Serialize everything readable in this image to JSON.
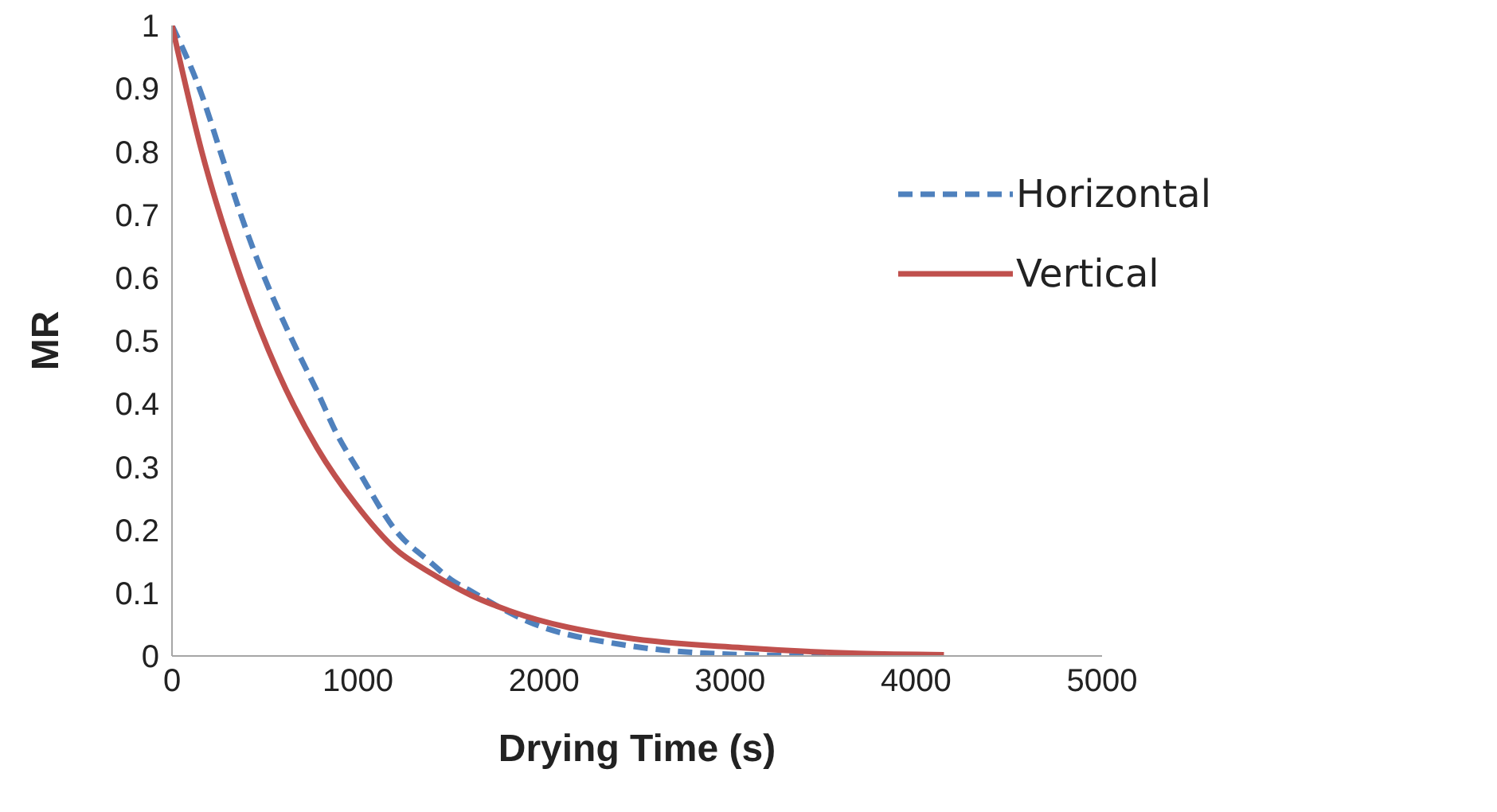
{
  "chart_data": {
    "type": "line",
    "xlabel": "Drying Time (s)",
    "ylabel": "MR",
    "xlim": [
      0,
      5000
    ],
    "xticks": [
      0,
      1000,
      2000,
      3000,
      4000,
      5000
    ],
    "ylim": [
      0,
      1
    ],
    "yticks": [
      0,
      0.1,
      0.2,
      0.3,
      0.4,
      0.5,
      0.6,
      0.7,
      0.8,
      0.9,
      1
    ],
    "grid": false,
    "legend": "top right",
    "marker": "none",
    "series": [
      {
        "name": "Horizontal",
        "color": "#4f81bd",
        "line_style": "dashed",
        "x": [
          0,
          160,
          260,
          370,
          470,
          570,
          680,
          780,
          890,
          990,
          1200,
          1400,
          1500,
          1600,
          1920,
          2440,
          3070,
          3500,
          4150
        ],
        "values": [
          1,
          0.89,
          0.8,
          0.7,
          0.62,
          0.55,
          0.48,
          0.42,
          0.35,
          0.3,
          0.2,
          0.146,
          0.121,
          0.104,
          0.054,
          0.017,
          0.002,
          0,
          0
        ]
      },
      {
        "name": "Vertical",
        "color": "#c0504d",
        "line_style": "solid",
        "x": [
          0,
          160,
          370,
          570,
          780,
          990,
          1200,
          1400,
          1610,
          1820,
          2440,
          3070,
          3690,
          4150
        ],
        "values": [
          1,
          0.8,
          0.6,
          0.45,
          0.33,
          0.24,
          0.17,
          0.13,
          0.096,
          0.071,
          0.029,
          0.013,
          0.004,
          0.002
        ]
      }
    ]
  }
}
